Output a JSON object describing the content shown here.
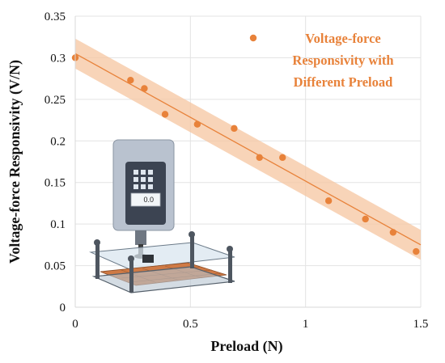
{
  "chart_data": {
    "type": "scatter",
    "xlabel": "Preload (N)",
    "ylabel": "Voltage-force Responsivity (V/N)",
    "xlim": [
      0,
      1.5
    ],
    "ylim": [
      0,
      0.35
    ],
    "x_ticks": [
      "0",
      "0.5",
      "1",
      "1.5"
    ],
    "y_ticks": [
      "0",
      "0.05",
      "0.1",
      "0.15",
      "0.2",
      "0.25",
      "0.3",
      "0.35"
    ],
    "grid": true,
    "legend_position": "top-right",
    "series": [
      {
        "name": "Voltage-force Responsivity with Different Preload",
        "legend_lines": [
          "Voltage-force",
          "Responsivity with",
          "Different Preload"
        ],
        "color": "#e8823a",
        "points": [
          [
            0.0,
            0.3
          ],
          [
            0.24,
            0.273
          ],
          [
            0.3,
            0.263
          ],
          [
            0.39,
            0.232
          ],
          [
            0.53,
            0.22
          ],
          [
            0.69,
            0.215
          ],
          [
            0.8,
            0.18
          ],
          [
            0.9,
            0.18
          ],
          [
            1.1,
            0.128
          ],
          [
            1.26,
            0.106
          ],
          [
            1.38,
            0.09
          ],
          [
            1.48,
            0.067
          ]
        ]
      }
    ],
    "fit": {
      "start": [
        0,
        0.305
      ],
      "end": [
        1.5,
        0.075
      ],
      "band_halfwidth": 0.018,
      "band_color": "#f6c6a0",
      "line_color": "#e8823a"
    },
    "inset": {
      "display_value": "0.0",
      "description": "force gauge pressing sensor on preload fixture"
    }
  }
}
